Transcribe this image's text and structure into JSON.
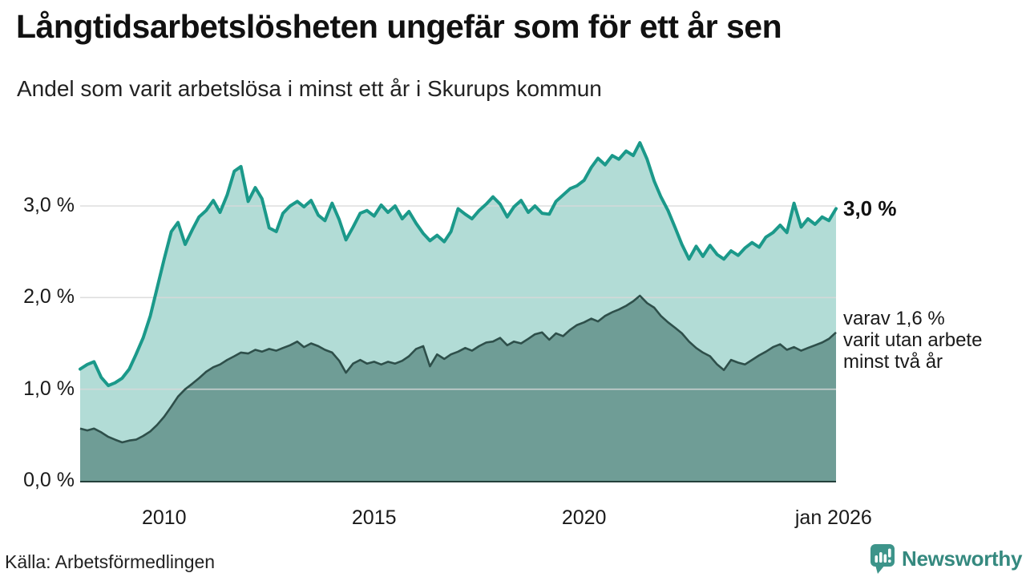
{
  "header": {
    "title": "Långtidsarbetslösheten ungefär som för ett år sen",
    "subtitle": "Andel som varit arbetslösa i minst ett år i Skurups kommun"
  },
  "source": {
    "label": "Källa: Arbetsförmedlingen"
  },
  "logo": {
    "name": "Newsworthy",
    "icon": "newsworthy-speech-bubble-bar-chart-icon",
    "text_color": "#35897f",
    "icon_color": "#3d948a"
  },
  "colors": {
    "line_total": "#1b998a",
    "fill_total": "#b2dcd6",
    "line_partial": "#2e4f4a",
    "fill_partial": "#6f9d96",
    "gridline": "#d9d9d9",
    "baseline": "#24403b",
    "text": "#1a1a1a"
  },
  "chart_data": {
    "type": "area",
    "title": "Långtidsarbetslösheten ungefär som för ett år sen",
    "subtitle": "Andel som varit arbetslösa i minst ett år i Skurups kommun",
    "xlabel": "",
    "ylabel": "",
    "y_unit": "%",
    "grid": true,
    "x_range": [
      2008.0,
      2026.0
    ],
    "ylim": [
      0.0,
      3.7
    ],
    "y_ticks": [
      {
        "value": 3.0,
        "label": "3,0 %"
      },
      {
        "value": 2.0,
        "label": "2,0 %"
      },
      {
        "value": 1.0,
        "label": "1,0 %"
      },
      {
        "value": 0.0,
        "label": "0,0 %"
      }
    ],
    "x_ticks": [
      {
        "value": 2010.0,
        "label": "2010"
      },
      {
        "value": 2015.0,
        "label": "2015"
      },
      {
        "value": 2020.0,
        "label": "2020"
      },
      {
        "value": 2025.94,
        "label": "jan 2026"
      }
    ],
    "x": [
      2008.0,
      2008.17,
      2008.33,
      2008.5,
      2008.67,
      2008.83,
      2009.0,
      2009.17,
      2009.33,
      2009.5,
      2009.67,
      2009.83,
      2010.0,
      2010.17,
      2010.33,
      2010.5,
      2010.67,
      2010.83,
      2011.0,
      2011.17,
      2011.33,
      2011.5,
      2011.67,
      2011.83,
      2012.0,
      2012.17,
      2012.33,
      2012.5,
      2012.67,
      2012.83,
      2013.0,
      2013.17,
      2013.33,
      2013.5,
      2013.67,
      2013.83,
      2014.0,
      2014.17,
      2014.33,
      2014.5,
      2014.67,
      2014.83,
      2015.0,
      2015.17,
      2015.33,
      2015.5,
      2015.67,
      2015.83,
      2016.0,
      2016.17,
      2016.33,
      2016.5,
      2016.67,
      2016.83,
      2017.0,
      2017.17,
      2017.33,
      2017.5,
      2017.67,
      2017.83,
      2018.0,
      2018.17,
      2018.33,
      2018.5,
      2018.67,
      2018.83,
      2019.0,
      2019.17,
      2019.33,
      2019.5,
      2019.67,
      2019.83,
      2020.0,
      2020.17,
      2020.33,
      2020.5,
      2020.67,
      2020.83,
      2021.0,
      2021.17,
      2021.33,
      2021.5,
      2021.67,
      2021.83,
      2022.0,
      2022.17,
      2022.33,
      2022.5,
      2022.67,
      2022.83,
      2023.0,
      2023.17,
      2023.33,
      2023.5,
      2023.67,
      2023.83,
      2024.0,
      2024.17,
      2024.33,
      2024.5,
      2024.67,
      2024.83,
      2025.0,
      2025.17,
      2025.33,
      2025.5,
      2025.67,
      2025.83,
      2026.0
    ],
    "series": [
      {
        "name": "Andel arbetslösa minst ett år",
        "color": "#1b998a",
        "fill": "#b2dcd6",
        "values": [
          1.22,
          1.27,
          1.3,
          1.13,
          1.04,
          1.07,
          1.12,
          1.22,
          1.38,
          1.56,
          1.8,
          2.1,
          2.42,
          2.72,
          2.82,
          2.58,
          2.74,
          2.88,
          2.95,
          3.06,
          2.93,
          3.12,
          3.38,
          3.43,
          3.05,
          3.2,
          3.08,
          2.76,
          2.72,
          2.92,
          3.0,
          3.05,
          2.99,
          3.06,
          2.9,
          2.84,
          3.03,
          2.85,
          2.63,
          2.77,
          2.92,
          2.95,
          2.89,
          3.01,
          2.93,
          3.0,
          2.86,
          2.94,
          2.81,
          2.7,
          2.62,
          2.68,
          2.61,
          2.72,
          2.97,
          2.91,
          2.86,
          2.95,
          3.02,
          3.1,
          3.02,
          2.88,
          2.99,
          3.06,
          2.93,
          3.0,
          2.92,
          2.91,
          3.05,
          3.12,
          3.19,
          3.22,
          3.28,
          3.42,
          3.52,
          3.45,
          3.55,
          3.51,
          3.6,
          3.55,
          3.69,
          3.51,
          3.27,
          3.1,
          2.95,
          2.76,
          2.58,
          2.42,
          2.56,
          2.45,
          2.57,
          2.47,
          2.42,
          2.51,
          2.46,
          2.54,
          2.6,
          2.55,
          2.66,
          2.71,
          2.79,
          2.71,
          3.03,
          2.77,
          2.86,
          2.8,
          2.88,
          2.84,
          2.97
        ]
      },
      {
        "name": "varav utan arbete minst två år",
        "color": "#2e4f4a",
        "fill": "#6f9d96",
        "values": [
          0.57,
          0.55,
          0.57,
          0.53,
          0.48,
          0.45,
          0.42,
          0.44,
          0.45,
          0.49,
          0.54,
          0.61,
          0.7,
          0.81,
          0.92,
          1.0,
          1.06,
          1.12,
          1.19,
          1.24,
          1.27,
          1.32,
          1.36,
          1.4,
          1.39,
          1.43,
          1.41,
          1.44,
          1.42,
          1.45,
          1.48,
          1.52,
          1.46,
          1.5,
          1.47,
          1.43,
          1.4,
          1.31,
          1.18,
          1.28,
          1.32,
          1.28,
          1.3,
          1.27,
          1.3,
          1.28,
          1.31,
          1.36,
          1.44,
          1.47,
          1.25,
          1.38,
          1.33,
          1.38,
          1.41,
          1.45,
          1.42,
          1.47,
          1.51,
          1.52,
          1.56,
          1.48,
          1.52,
          1.5,
          1.55,
          1.6,
          1.62,
          1.54,
          1.61,
          1.58,
          1.65,
          1.7,
          1.73,
          1.77,
          1.74,
          1.8,
          1.84,
          1.87,
          1.91,
          1.96,
          2.02,
          1.94,
          1.89,
          1.8,
          1.73,
          1.67,
          1.61,
          1.52,
          1.45,
          1.4,
          1.36,
          1.27,
          1.21,
          1.32,
          1.29,
          1.27,
          1.32,
          1.37,
          1.41,
          1.46,
          1.49,
          1.43,
          1.46,
          1.42,
          1.45,
          1.48,
          1.51,
          1.55,
          1.62
        ]
      }
    ],
    "end_labels": {
      "total": {
        "label": "3,0 %",
        "value": 2.97
      },
      "partial": {
        "lines": [
          "varav 1,6 %",
          "varit utan arbete",
          "minst två år"
        ],
        "value": 1.62
      }
    },
    "legend_position": "end-of-line-annotations"
  }
}
